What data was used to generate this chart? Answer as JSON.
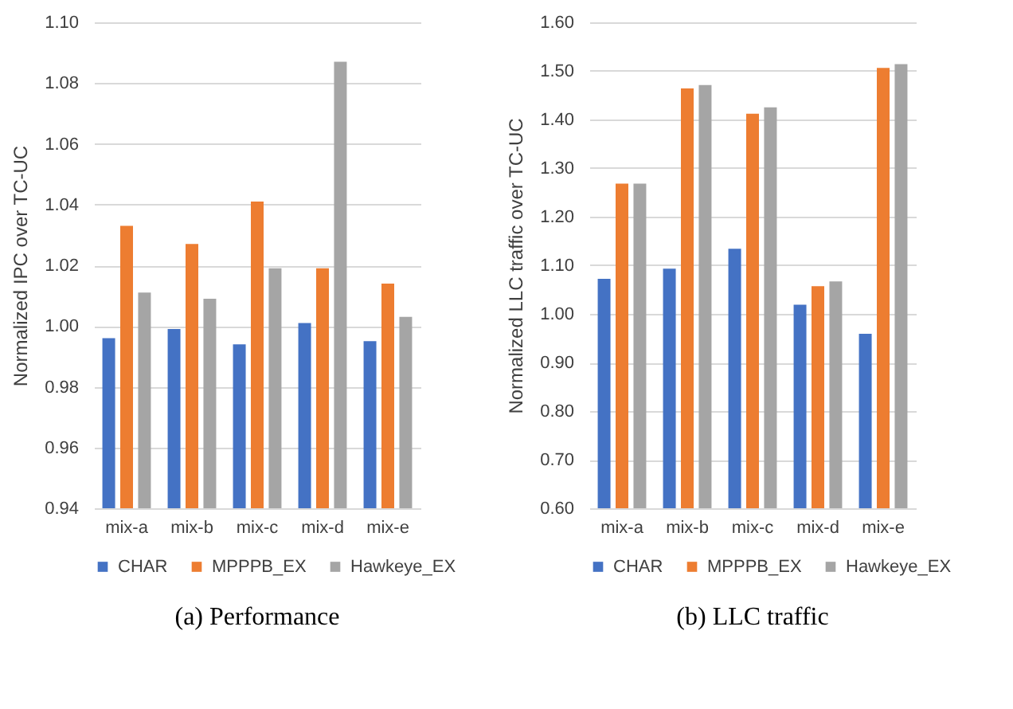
{
  "chart_data": [
    {
      "type": "bar",
      "title": "(a) Performance",
      "ylabel": "Normalized IPC over TC-UC",
      "categories": [
        "mix-a",
        "mix-b",
        "mix-c",
        "mix-d",
        "mix-e"
      ],
      "series": [
        {
          "name": "CHAR",
          "color": "#4472c4",
          "values": [
            0.996,
            0.999,
            0.994,
            1.001,
            0.995
          ]
        },
        {
          "name": "MPPPB_EX",
          "color": "#ed7d31",
          "values": [
            1.033,
            1.027,
            1.041,
            1.019,
            1.014
          ]
        },
        {
          "name": "Hawkeye_EX",
          "color": "#a5a5a5",
          "values": [
            1.011,
            1.009,
            1.019,
            1.087,
            1.003
          ]
        }
      ],
      "ylim": [
        0.94,
        1.1
      ],
      "yticks": [
        {
          "value": 0.94,
          "label": "0.94"
        },
        {
          "value": 0.96,
          "label": "0.96"
        },
        {
          "value": 0.98,
          "label": "0.98"
        },
        {
          "value": 1,
          "label": "1.00"
        },
        {
          "value": 1.02,
          "label": "1.02"
        },
        {
          "value": 1.04,
          "label": "1.04"
        },
        {
          "value": 1.06,
          "label": "1.06"
        },
        {
          "value": 1.08,
          "label": "1.08"
        },
        {
          "value": 1.1,
          "label": "1.10"
        }
      ],
      "grid": "y",
      "legend": "bottom"
    },
    {
      "type": "bar",
      "title": "(b) LLC traffic",
      "ylabel": "Normalized LLC traffic over TC-UC",
      "categories": [
        "mix-a",
        "mix-b",
        "mix-c",
        "mix-d",
        "mix-e"
      ],
      "series": [
        {
          "name": "CHAR",
          "color": "#4472c4",
          "values": [
            1.072,
            1.093,
            1.134,
            1.019,
            0.959
          ]
        },
        {
          "name": "MPPPB_EX",
          "color": "#ed7d31",
          "values": [
            1.268,
            1.464,
            1.412,
            1.057,
            1.506
          ]
        },
        {
          "name": "Hawkeye_EX",
          "color": "#a5a5a5",
          "values": [
            1.268,
            1.471,
            1.425,
            1.067,
            1.514
          ]
        }
      ],
      "ylim": [
        0.6,
        1.6
      ],
      "yticks": [
        {
          "value": 0.6,
          "label": "0.60"
        },
        {
          "value": 0.7,
          "label": "0.70"
        },
        {
          "value": 0.8,
          "label": "0.80"
        },
        {
          "value": 0.9,
          "label": "0.90"
        },
        {
          "value": 1,
          "label": "1.00"
        },
        {
          "value": 1.1,
          "label": "1.10"
        },
        {
          "value": 1.2,
          "label": "1.20"
        },
        {
          "value": 1.3,
          "label": "1.30"
        },
        {
          "value": 1.4,
          "label": "1.40"
        },
        {
          "value": 1.5,
          "label": "1.50"
        },
        {
          "value": 1.6,
          "label": "1.60"
        }
      ],
      "grid": "y",
      "legend": "bottom"
    }
  ]
}
